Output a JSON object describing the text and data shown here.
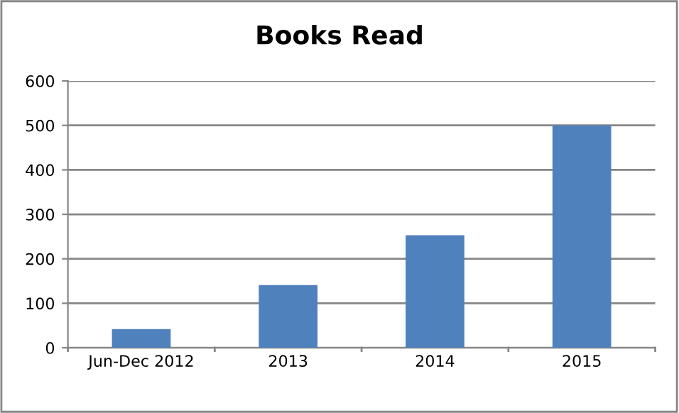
{
  "chart_data": {
    "type": "bar",
    "title": "Books Read",
    "categories": [
      "Jun-Dec 2012",
      "2013",
      "2014",
      "2015"
    ],
    "values": [
      42,
      141,
      253,
      500
    ],
    "color": "#4f81bd",
    "ylim": [
      0,
      600
    ],
    "yticks": [
      0,
      100,
      200,
      300,
      400,
      500,
      600
    ],
    "grid": "y",
    "legend": false
  }
}
